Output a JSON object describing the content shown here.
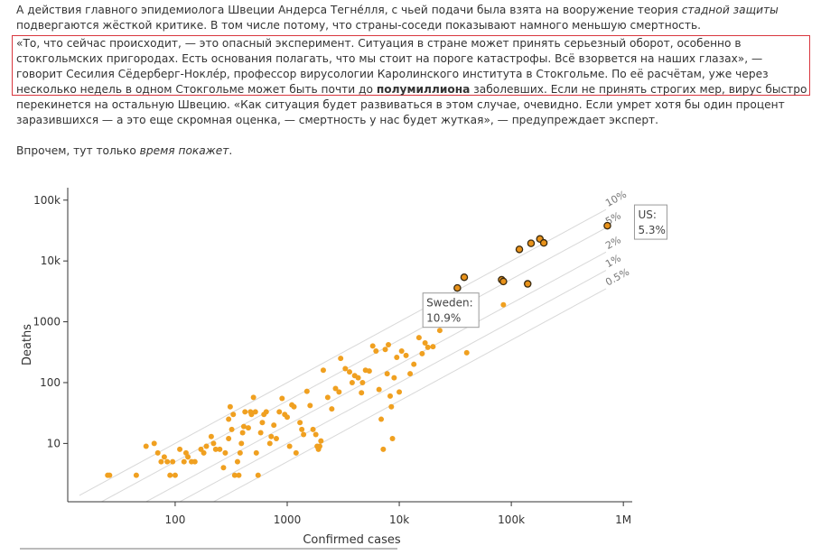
{
  "article": {
    "p1": [
      {
        "t": "А действия главного эпидемиолога Швеции Андерса Тегне́лля, с чьей подачи была взята на вооружение теория "
      },
      {
        "t": "стадной защиты",
        "em": true
      },
      {
        "t": " подвергаются жёсткой критике. В том числе потому, что страны-соседи показывают намного меньшую смертность."
      }
    ],
    "p2": [
      {
        "t": "«То, что сейчас происходит, — это опасный эксперимент. Ситуация в стране может принять серьезный оборот, особенно в стокгольмских пригородах. Есть основания полагать, что мы стоит на пороге катастрофы. Всё взорвется на наших глазах», — говорит Сесилия Сёдерберг-Ноклéр, профессор вирусологии Каролинского института в Стокгольме. По её расчётам, уже через несколько недель в одном Стокгольме может быть почти до "
      },
      {
        "t": "полумиллиона",
        "b": true
      },
      {
        "t": " заболевших. Если не принять строгих мер, вирус быстро перекинется на остальную Швецию. «Как ситуация будет развиваться в этом случае, очевидно. Если умрет хотя бы один процент заразившихся — а это еще скромная оценка, — смертность у нас будет жуткая», — предупреждает эксперт."
      }
    ],
    "p3": [
      {
        "t": "Впрочем, тут только "
      },
      {
        "t": "время покажет",
        "em": true
      },
      {
        "t": "."
      }
    ]
  },
  "chart_data": {
    "type": "scatter",
    "title": "",
    "xlabel": "Confirmed cases",
    "ylabel": "Deaths",
    "xscale": "log",
    "yscale": "log",
    "xlim": [
      11,
      1200000
    ],
    "ylim": [
      1.1,
      160000
    ],
    "xticks": [
      {
        "v": 100,
        "label": "100"
      },
      {
        "v": 1000,
        "label": "1000"
      },
      {
        "v": 10000,
        "label": "10k"
      },
      {
        "v": 100000,
        "label": "100k"
      },
      {
        "v": 1000000,
        "label": "1M"
      }
    ],
    "yticks": [
      {
        "v": 10,
        "label": "10"
      },
      {
        "v": 100,
        "label": "100"
      },
      {
        "v": 1000,
        "label": "1000"
      },
      {
        "v": 10000,
        "label": "10k"
      },
      {
        "v": 100000,
        "label": "100k"
      }
    ],
    "grid": false,
    "reference_lines": [
      {
        "rate": 0.1,
        "label": "10%"
      },
      {
        "rate": 0.05,
        "label": "5%"
      },
      {
        "rate": 0.02,
        "label": "2%"
      },
      {
        "rate": 0.01,
        "label": "1%"
      },
      {
        "rate": 0.005,
        "label": "0.5%"
      }
    ],
    "colors": {
      "point": "#f0a020",
      "highlight": "#e8921a",
      "outline": "#3a2a10",
      "refline": "#d8d8d8",
      "axis": "#333333"
    },
    "series": [
      {
        "highlighted": false,
        "points": [
          [
            25,
            3
          ],
          [
            26,
            3
          ],
          [
            45,
            3
          ],
          [
            55,
            9
          ],
          [
            65,
            10
          ],
          [
            70,
            7
          ],
          [
            75,
            5
          ],
          [
            80,
            6
          ],
          [
            85,
            5
          ],
          [
            90,
            3
          ],
          [
            95,
            5
          ],
          [
            100,
            3
          ],
          [
            110,
            8
          ],
          [
            120,
            5
          ],
          [
            125,
            7
          ],
          [
            130,
            6
          ],
          [
            140,
            5
          ],
          [
            150,
            5
          ],
          [
            170,
            8
          ],
          [
            180,
            7
          ],
          [
            190,
            9
          ],
          [
            210,
            13
          ],
          [
            220,
            10
          ],
          [
            230,
            8
          ],
          [
            250,
            8
          ],
          [
            270,
            4
          ],
          [
            280,
            7
          ],
          [
            300,
            25
          ],
          [
            300,
            12
          ],
          [
            310,
            40
          ],
          [
            320,
            17
          ],
          [
            330,
            30
          ],
          [
            340,
            3
          ],
          [
            360,
            5
          ],
          [
            370,
            3
          ],
          [
            380,
            7
          ],
          [
            390,
            10
          ],
          [
            400,
            15
          ],
          [
            410,
            19
          ],
          [
            420,
            33
          ],
          [
            450,
            18
          ],
          [
            470,
            33
          ],
          [
            480,
            30
          ],
          [
            500,
            57
          ],
          [
            520,
            33
          ],
          [
            530,
            7
          ],
          [
            550,
            3
          ],
          [
            580,
            15
          ],
          [
            600,
            22
          ],
          [
            620,
            30
          ],
          [
            650,
            33
          ],
          [
            700,
            10
          ],
          [
            720,
            13
          ],
          [
            760,
            20
          ],
          [
            800,
            12
          ],
          [
            850,
            33
          ],
          [
            900,
            55
          ],
          [
            950,
            30
          ],
          [
            1000,
            27
          ],
          [
            1050,
            9
          ],
          [
            1100,
            43
          ],
          [
            1150,
            40
          ],
          [
            1200,
            7
          ],
          [
            1300,
            22
          ],
          [
            1350,
            17
          ],
          [
            1400,
            14
          ],
          [
            1500,
            72
          ],
          [
            1600,
            42
          ],
          [
            1700,
            17
          ],
          [
            1800,
            14
          ],
          [
            1850,
            9
          ],
          [
            1900,
            8
          ],
          [
            1950,
            9
          ],
          [
            2000,
            11
          ],
          [
            2100,
            160
          ],
          [
            2300,
            57
          ],
          [
            2500,
            37
          ],
          [
            2700,
            80
          ],
          [
            2900,
            70
          ],
          [
            3000,
            250
          ],
          [
            3300,
            170
          ],
          [
            3600,
            150
          ],
          [
            3800,
            100
          ],
          [
            4000,
            130
          ],
          [
            4300,
            120
          ],
          [
            4600,
            68
          ],
          [
            4700,
            100
          ],
          [
            5000,
            160
          ],
          [
            5400,
            155
          ],
          [
            5800,
            400
          ],
          [
            6200,
            330
          ],
          [
            6600,
            77
          ],
          [
            6900,
            25
          ],
          [
            7200,
            8
          ],
          [
            7500,
            350
          ],
          [
            7800,
            140
          ],
          [
            8000,
            420
          ],
          [
            8300,
            60
          ],
          [
            8500,
            40
          ],
          [
            8700,
            12
          ],
          [
            9000,
            120
          ],
          [
            9500,
            260
          ],
          [
            10000,
            70
          ],
          [
            10500,
            330
          ],
          [
            11500,
            280
          ],
          [
            12500,
            140
          ],
          [
            13500,
            200
          ],
          [
            15000,
            550
          ],
          [
            16000,
            300
          ],
          [
            17000,
            450
          ],
          [
            18000,
            380
          ],
          [
            20000,
            390
          ],
          [
            23000,
            720
          ],
          [
            40000,
            310
          ],
          [
            85000,
            1900
          ]
        ]
      },
      {
        "highlighted": true,
        "points": [
          [
            33000,
            3600
          ],
          [
            38000,
            5400
          ],
          [
            82000,
            4900
          ],
          [
            85000,
            4600
          ],
          [
            118000,
            15500
          ],
          [
            140000,
            4200
          ],
          [
            150000,
            19500
          ],
          [
            180000,
            23000
          ],
          [
            195000,
            19800
          ],
          [
            720000,
            38000
          ]
        ]
      }
    ],
    "callouts": [
      {
        "name": "Sweden",
        "label": "Sweden:",
        "value": "10.9%",
        "at": [
          14000,
          1500
        ]
      },
      {
        "name": "US",
        "label": "US:",
        "value": "5.3%",
        "at": [
          720000,
          38000
        ]
      }
    ]
  }
}
